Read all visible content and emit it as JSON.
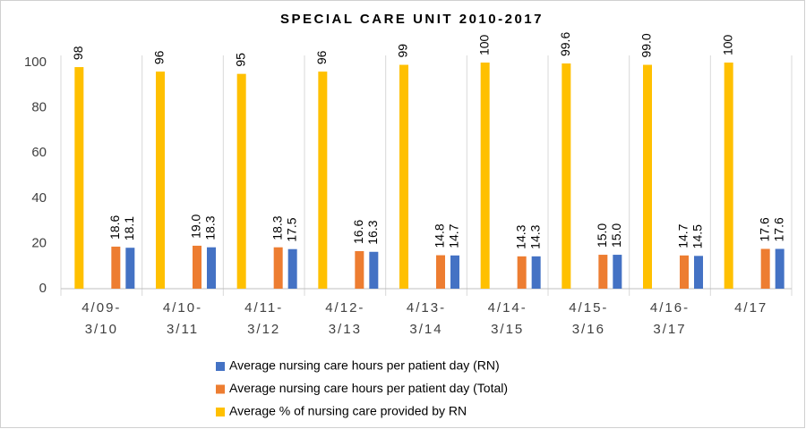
{
  "chart_data": {
    "type": "bar",
    "title": "SPECIAL CARE UNIT 2010-2017",
    "categories": [
      [
        "4/09-",
        "3/10"
      ],
      [
        "4/10-",
        "3/11"
      ],
      [
        "4/11-",
        "3/12"
      ],
      [
        "4/12-",
        "3/13"
      ],
      [
        "4/13-",
        "3/14"
      ],
      [
        "4/14-",
        "3/15"
      ],
      [
        "4/15-",
        "3/16"
      ],
      [
        "4/16-",
        "3/17"
      ],
      [
        "4/17"
      ]
    ],
    "series": [
      {
        "name": "Average nursing care hours per patient day (RN)",
        "color": "#4472c4",
        "values": [
          18.1,
          18.3,
          17.5,
          16.3,
          14.7,
          14.3,
          15.0,
          14.5,
          17.6
        ],
        "value_labels": [
          "18.1",
          "18.3",
          "17.5",
          "16.3",
          "14.7",
          "14.3",
          "15.0",
          "14.5",
          "17.6"
        ]
      },
      {
        "name": "Average nursing care hours per patient day (Total)",
        "color": "#ed7d31",
        "values": [
          18.6,
          19.0,
          18.3,
          16.6,
          14.8,
          14.3,
          15.0,
          14.7,
          17.6
        ],
        "value_labels": [
          "18.6",
          "19.0",
          "18.3",
          "16.6",
          "14.8",
          "14.3",
          "15.0",
          "14.7",
          "17.6"
        ]
      },
      {
        "name": "Average % of nursing care provided by RN",
        "color": "#ffc000",
        "values": [
          98,
          96,
          95,
          96,
          99,
          100,
          99.6,
          99.0,
          100
        ],
        "value_labels": [
          "98",
          "96",
          "95",
          "96",
          "99",
          "100",
          "99.6",
          "99.0",
          "100"
        ]
      }
    ],
    "ylim": [
      0,
      100
    ],
    "yticks": [
      0,
      20,
      40,
      60,
      80,
      100
    ],
    "grid": false,
    "legend": "bottom"
  }
}
